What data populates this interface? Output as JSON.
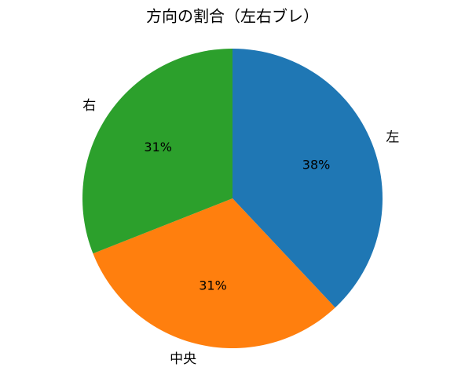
{
  "chart_data": {
    "type": "pie",
    "title": "方向の割合（左右ブレ）",
    "categories": [
      "左",
      "中央",
      "右"
    ],
    "values": [
      38,
      31,
      31
    ],
    "value_labels": [
      "38%",
      "31%",
      "31%"
    ],
    "colors": [
      "#1f77b4",
      "#ff7f0e",
      "#2ca02c"
    ],
    "start_angle": 90,
    "clockwise": true
  }
}
